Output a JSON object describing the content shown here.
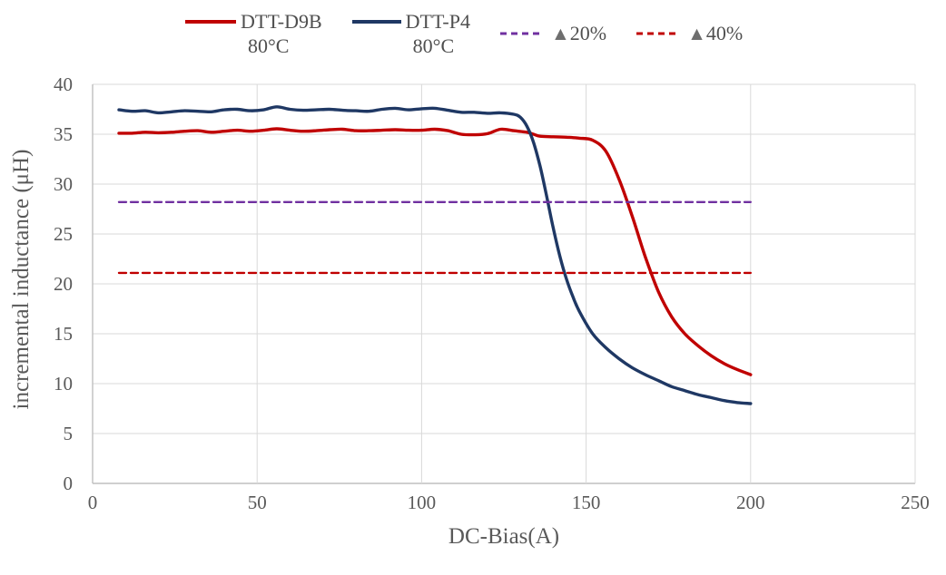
{
  "legend": {
    "items": [
      {
        "label": "DTT-D9B",
        "sublabel": "80°C",
        "color": "#c00000",
        "style": "solid"
      },
      {
        "label": "DTT-P4",
        "sublabel": "80°C",
        "color": "#1f3864",
        "style": "solid"
      },
      {
        "marker": "▲",
        "label": "20%",
        "color": "#7030a0",
        "marker_color": "#6e6e6e",
        "style": "dashed"
      },
      {
        "marker": "▲",
        "label": "40%",
        "color": "#c00000",
        "marker_color": "#6e6e6e",
        "style": "dashed"
      }
    ]
  },
  "axes": {
    "x_title": "DC-Bias(A)",
    "y_title": "incremental inductance (μH)",
    "tick_color": "#595959",
    "gridline_color": "#d9d9d9",
    "axis_line_color": "#bfbfbf"
  },
  "chart_data": {
    "type": "line",
    "title": "",
    "xlabel": "DC-Bias(A)",
    "ylabel": "incremental inductance (μH)",
    "xlim": [
      0,
      250
    ],
    "ylim": [
      0,
      40
    ],
    "x_ticks": [
      0,
      50,
      100,
      150,
      200,
      250
    ],
    "y_ticks": [
      0,
      5,
      10,
      15,
      20,
      25,
      30,
      35,
      40
    ],
    "grid": true,
    "legend_position": "top",
    "series": [
      {
        "name": "DTT-D9B 80°C",
        "color": "#c00000",
        "style": "solid",
        "width": 3.4,
        "points": [
          [
            8,
            35.1
          ],
          [
            12,
            35.1
          ],
          [
            16,
            35.2
          ],
          [
            20,
            35.15
          ],
          [
            24,
            35.2
          ],
          [
            28,
            35.3
          ],
          [
            32,
            35.35
          ],
          [
            36,
            35.2
          ],
          [
            40,
            35.3
          ],
          [
            44,
            35.4
          ],
          [
            48,
            35.3
          ],
          [
            52,
            35.4
          ],
          [
            56,
            35.55
          ],
          [
            60,
            35.4
          ],
          [
            64,
            35.3
          ],
          [
            68,
            35.35
          ],
          [
            72,
            35.45
          ],
          [
            76,
            35.5
          ],
          [
            80,
            35.35
          ],
          [
            84,
            35.35
          ],
          [
            88,
            35.4
          ],
          [
            92,
            35.45
          ],
          [
            96,
            35.4
          ],
          [
            100,
            35.4
          ],
          [
            104,
            35.5
          ],
          [
            108,
            35.35
          ],
          [
            112,
            35.0
          ],
          [
            116,
            34.95
          ],
          [
            120,
            35.05
          ],
          [
            124,
            35.5
          ],
          [
            128,
            35.35
          ],
          [
            132,
            35.2
          ],
          [
            134,
            35.0
          ],
          [
            136,
            34.8
          ],
          [
            140,
            34.75
          ],
          [
            144,
            34.7
          ],
          [
            148,
            34.6
          ],
          [
            152,
            34.4
          ],
          [
            156,
            33.3
          ],
          [
            160,
            30.5
          ],
          [
            164,
            26.8
          ],
          [
            168,
            22.7
          ],
          [
            172,
            19.2
          ],
          [
            176,
            16.7
          ],
          [
            180,
            15.0
          ],
          [
            184,
            13.8
          ],
          [
            188,
            12.8
          ],
          [
            192,
            12.0
          ],
          [
            196,
            11.4
          ],
          [
            200,
            10.9
          ]
        ]
      },
      {
        "name": "DTT-P4 80°C",
        "color": "#1f3864",
        "style": "solid",
        "width": 3.4,
        "points": [
          [
            8,
            37.45
          ],
          [
            12,
            37.3
          ],
          [
            16,
            37.35
          ],
          [
            20,
            37.15
          ],
          [
            24,
            37.25
          ],
          [
            28,
            37.35
          ],
          [
            32,
            37.3
          ],
          [
            36,
            37.25
          ],
          [
            40,
            37.45
          ],
          [
            44,
            37.5
          ],
          [
            48,
            37.35
          ],
          [
            52,
            37.45
          ],
          [
            56,
            37.75
          ],
          [
            60,
            37.5
          ],
          [
            64,
            37.4
          ],
          [
            68,
            37.45
          ],
          [
            72,
            37.5
          ],
          [
            76,
            37.4
          ],
          [
            80,
            37.35
          ],
          [
            84,
            37.3
          ],
          [
            88,
            37.5
          ],
          [
            92,
            37.6
          ],
          [
            96,
            37.45
          ],
          [
            100,
            37.55
          ],
          [
            104,
            37.6
          ],
          [
            108,
            37.4
          ],
          [
            112,
            37.2
          ],
          [
            116,
            37.2
          ],
          [
            120,
            37.1
          ],
          [
            124,
            37.15
          ],
          [
            128,
            37.0
          ],
          [
            130,
            36.7
          ],
          [
            132,
            35.8
          ],
          [
            134,
            34.2
          ],
          [
            136,
            31.8
          ],
          [
            138,
            28.8
          ],
          [
            140,
            25.6
          ],
          [
            142,
            22.8
          ],
          [
            144,
            20.5
          ],
          [
            146,
            18.7
          ],
          [
            148,
            17.2
          ],
          [
            152,
            15.0
          ],
          [
            156,
            13.6
          ],
          [
            160,
            12.5
          ],
          [
            164,
            11.6
          ],
          [
            168,
            10.9
          ],
          [
            172,
            10.3
          ],
          [
            176,
            9.7
          ],
          [
            180,
            9.3
          ],
          [
            184,
            8.9
          ],
          [
            188,
            8.6
          ],
          [
            192,
            8.3
          ],
          [
            196,
            8.1
          ],
          [
            200,
            8.0
          ]
        ]
      },
      {
        "name": "▲20%",
        "color": "#7030a0",
        "style": "dashed",
        "width": 2.4,
        "points": [
          [
            8,
            28.2
          ],
          [
            200,
            28.2
          ]
        ]
      },
      {
        "name": "▲40%",
        "color": "#c00000",
        "style": "dashed",
        "width": 2.4,
        "points": [
          [
            8,
            21.1
          ],
          [
            200,
            21.1
          ]
        ]
      }
    ]
  }
}
